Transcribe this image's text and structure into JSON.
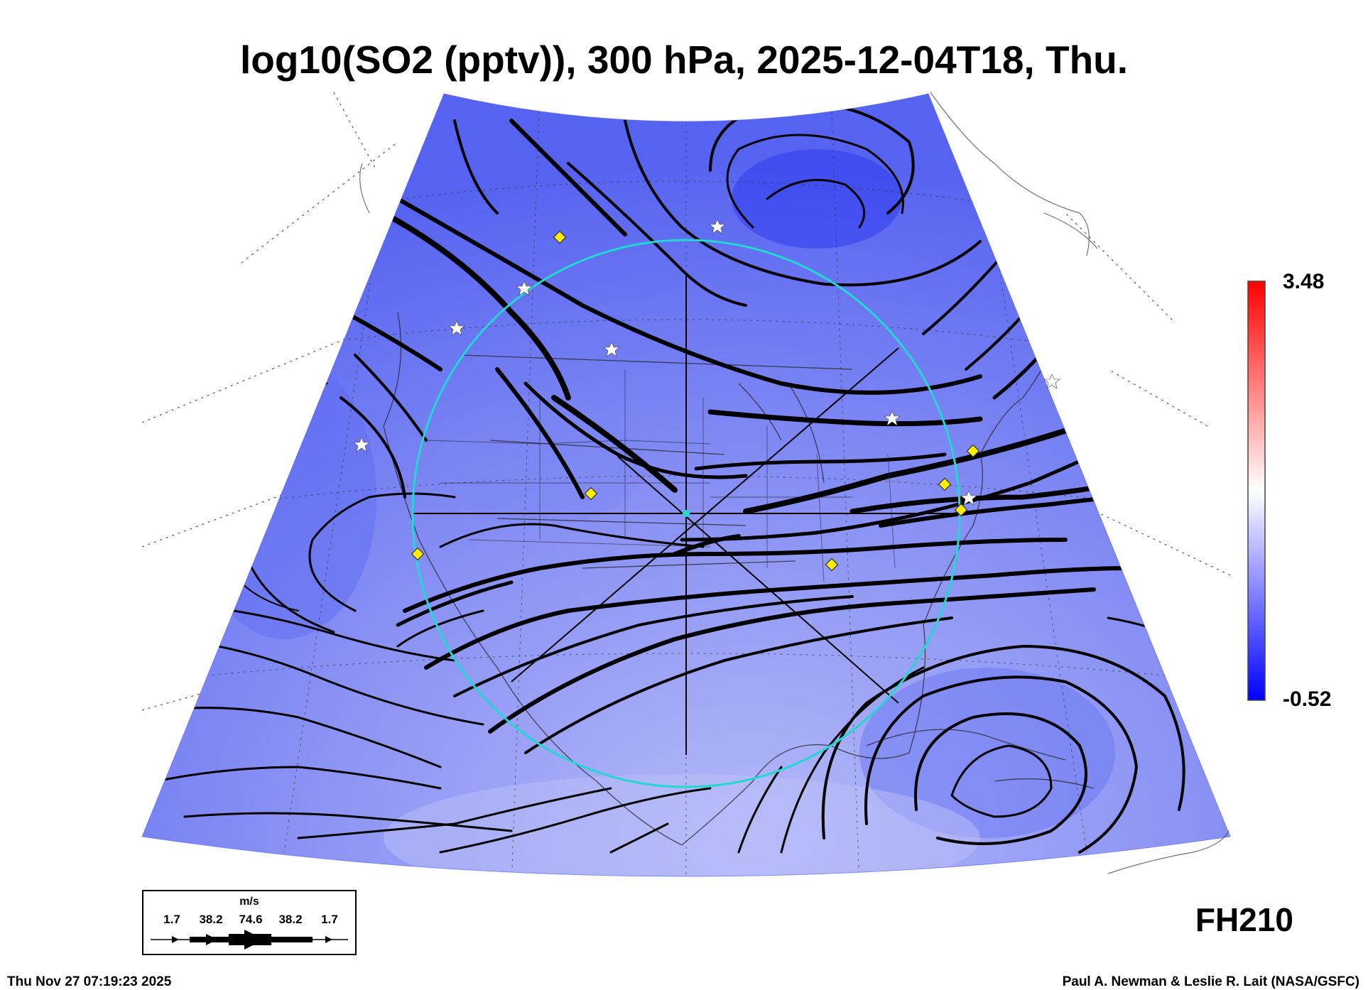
{
  "title": "log10(SO2 (pptv)), 300 hPa, 2025-12-04T18, Thu.",
  "colorbar": {
    "max_label": "3.48",
    "min_label": "-0.52",
    "colors": [
      "#ff0000",
      "#ffffff",
      "#0000ff"
    ]
  },
  "field": {
    "base_color": "#5c6bf2",
    "light_color": "#a8aef6",
    "dark_color": "#2a35ee"
  },
  "wind_legend": {
    "unit": "m/s",
    "speeds": [
      "1.7",
      "38.2",
      "74.6",
      "38.2",
      "1.7"
    ]
  },
  "forecast_hour": "FH210",
  "timestamp": "Thu Nov 27 07:19:23 2025",
  "credit": "Paul A. Newman & Leslie R. Lait (NASA/GSFC)",
  "markers": {
    "diamond_color": "#ffee00",
    "star_color": "#ffffff",
    "circle_color": "#22d8d0"
  }
}
